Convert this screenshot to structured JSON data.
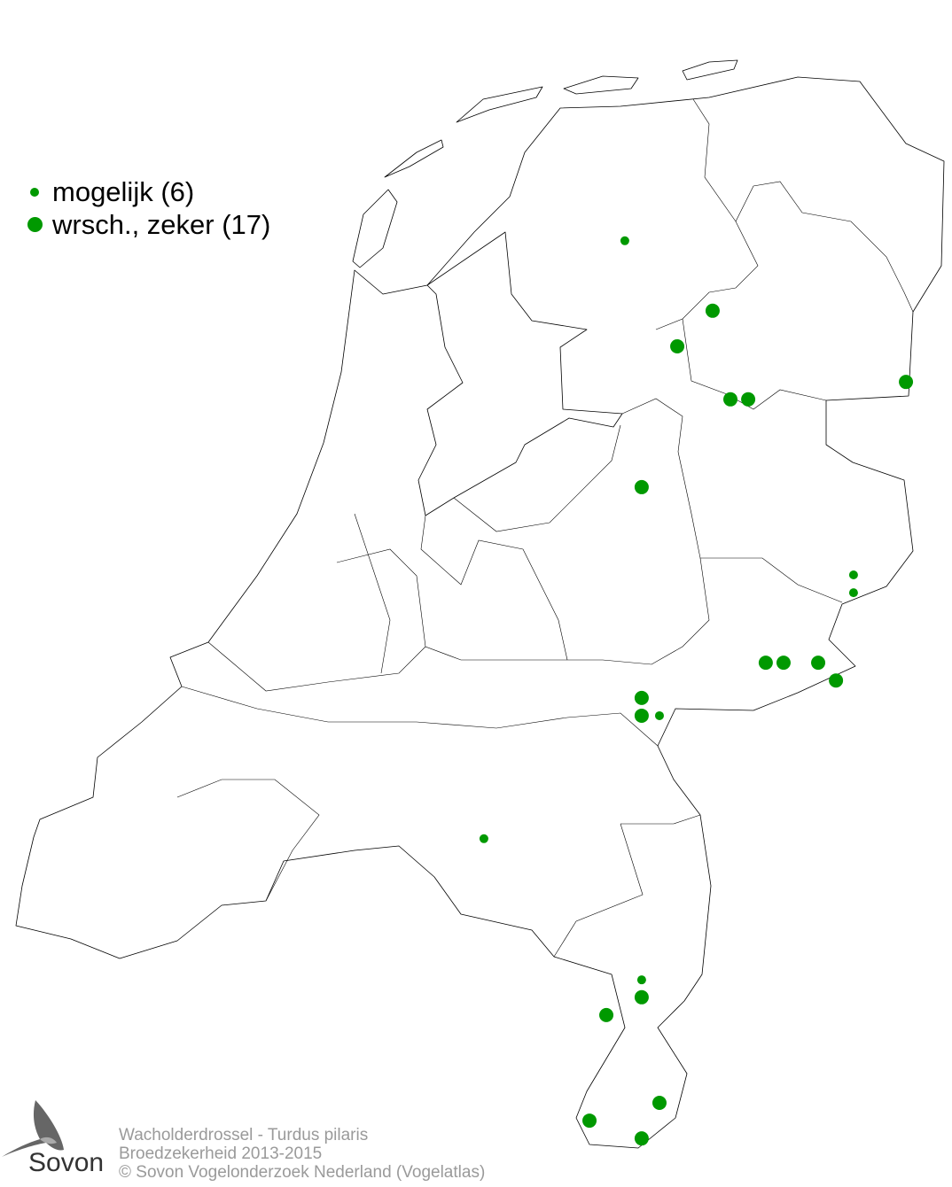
{
  "legend": {
    "items": [
      {
        "label": "mogelijk (6)",
        "size": "small"
      },
      {
        "label": "wrsch., zeker (17)",
        "size": "large"
      }
    ]
  },
  "colors": {
    "dot": "#009900",
    "border": "#000000",
    "footer_text": "#9a9a9a"
  },
  "footer": {
    "line1": "Wacholderdrossel - Turdus pilaris",
    "line2": "Broedzekerheid 2013-2015",
    "line3": "© Sovon Vogelonderzoek Nederland (Vogelatlas)"
  },
  "logo": {
    "text": "Sovon",
    "icon": "swallow-icon"
  },
  "observations": {
    "mogelijk": [
      [
        5.903,
        53.042
      ],
      [
        6.854,
        52.197
      ],
      [
        6.854,
        52.152
      ],
      [
        6.047,
        51.841
      ],
      [
        5.317,
        51.53
      ],
      [
        5.973,
        51.173
      ]
    ],
    "wrsch_zeker": [
      [
        6.268,
        52.865
      ],
      [
        6.121,
        52.775
      ],
      [
        6.342,
        52.641
      ],
      [
        6.416,
        52.641
      ],
      [
        7.072,
        52.685
      ],
      [
        5.973,
        52.419
      ],
      [
        6.489,
        51.975
      ],
      [
        6.563,
        51.975
      ],
      [
        6.707,
        51.975
      ],
      [
        6.781,
        51.93
      ],
      [
        5.973,
        51.886
      ],
      [
        5.973,
        51.841
      ],
      [
        5.826,
        51.084
      ],
      [
        5.973,
        51.129
      ],
      [
        6.047,
        50.862
      ],
      [
        5.756,
        50.817
      ],
      [
        5.973,
        50.772
      ]
    ]
  }
}
